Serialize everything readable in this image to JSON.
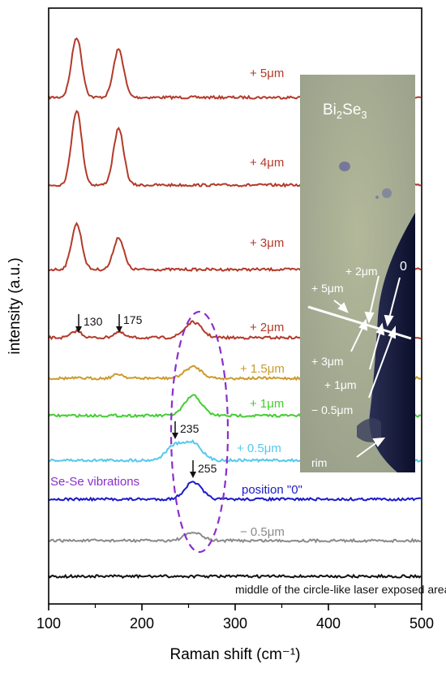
{
  "chart_data": {
    "type": "line",
    "xlabel": "Raman shift (cm⁻¹)",
    "ylabel": "intensity (a.u.)",
    "xlim": [
      100,
      500
    ],
    "xticks": [
      "100",
      "200",
      "300",
      "400",
      "500"
    ],
    "grid": false,
    "series": [
      {
        "name": "+ 5μm",
        "color": "#b33a2a",
        "peaks": [
          [
            130,
            1.0
          ],
          [
            175,
            0.8
          ]
        ]
      },
      {
        "name": "+ 4μm",
        "color": "#b33a2a",
        "peaks": [
          [
            130,
            1.0
          ],
          [
            175,
            0.75
          ]
        ]
      },
      {
        "name": "+ 3μm",
        "color": "#b33a2a",
        "peaks": [
          [
            130,
            0.85
          ],
          [
            175,
            0.6
          ]
        ]
      },
      {
        "name": "+ 2μm",
        "color": "#b33a2a",
        "peaks": [
          [
            130,
            0.12
          ],
          [
            175,
            0.1
          ],
          [
            255,
            0.28
          ]
        ]
      },
      {
        "name": "+ 1.5μm",
        "color": "#cc9a2e",
        "peaks": [
          [
            175,
            0.08
          ],
          [
            255,
            0.22
          ]
        ]
      },
      {
        "name": "+ 1μm",
        "color": "#44cc33",
        "peaks": [
          [
            255,
            0.35
          ]
        ]
      },
      {
        "name": "+ 0.5μm",
        "color": "#55c8ee",
        "peaks": [
          [
            235,
            0.22
          ],
          [
            255,
            0.26
          ]
        ]
      },
      {
        "name": "position \"0\"",
        "color": "#1a1acc",
        "peaks": [
          [
            255,
            0.3
          ]
        ]
      },
      {
        "name": "− 0.5μm",
        "color": "#8a8a8a",
        "peaks": [
          [
            255,
            0.1
          ]
        ]
      },
      {
        "name": "middle of the circle-like laser exposed area",
        "color": "#111111",
        "peaks": []
      }
    ],
    "annotations": {
      "peak_130": "130",
      "peak_175": "175",
      "peak_235": "235",
      "peak_255": "255",
      "region_label": "Se-Se vibrations",
      "region_color": "#8b2fc9"
    },
    "inset": {
      "title_base": "Bi",
      "title_sub1": "2",
      "title_mid": "Se",
      "title_sub2": "3",
      "labels": {
        "zero": "0",
        "p2": "+ 2μm",
        "p5": "+ 5μm",
        "p3": "+ 3μm",
        "p1": "+ 1μm",
        "m05": "− 0.5μm",
        "rim": "rim"
      }
    }
  }
}
